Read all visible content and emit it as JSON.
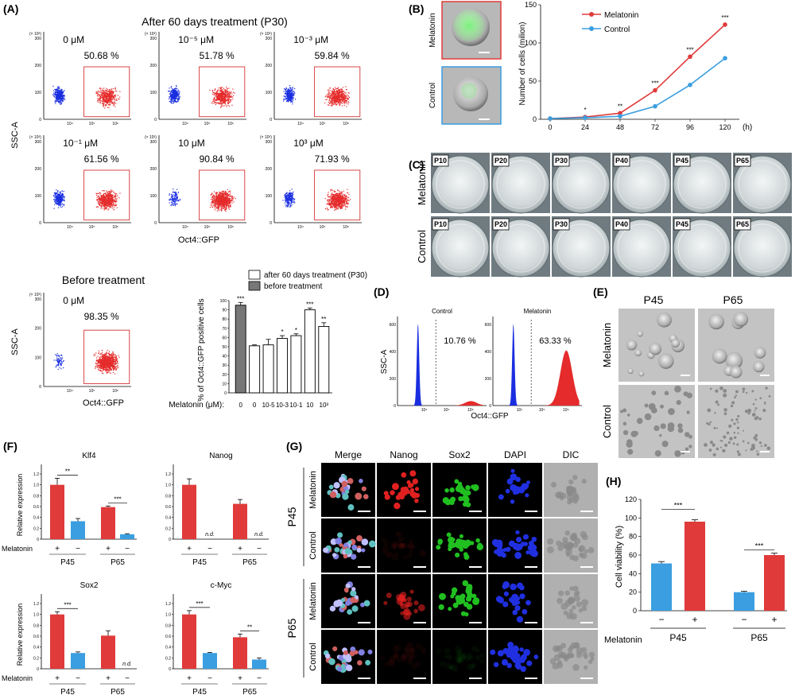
{
  "panels": {
    "A": "(A)",
    "B": "(B)",
    "C": "(C)",
    "D": "(D)",
    "E": "(E)",
    "F": "(F)",
    "G": "(G)",
    "H": "(H)"
  },
  "A": {
    "title": "After 60 days treatment (P30)",
    "scale_label": "(× 10³)",
    "yticks": [
      "0",
      "100",
      "200",
      "300"
    ],
    "xticks": [
      "0",
      "10⁴",
      "10⁵",
      "10⁶"
    ],
    "ylabel": "SSC-A",
    "xlabel": "Oct4::GFP",
    "plots": [
      {
        "dose": "0 μM",
        "pct": "50.68 %"
      },
      {
        "dose": "10⁻⁵ μM",
        "pct": "51.78 %"
      },
      {
        "dose": "10⁻³ μM",
        "pct": "59.84 %"
      },
      {
        "dose": "10⁻¹ μM",
        "pct": "61.56 %"
      },
      {
        "dose": "10 μM",
        "pct": "90.84 %"
      },
      {
        "dose": "10³ μM",
        "pct": "71.93 %"
      }
    ],
    "before": {
      "title": "Before treatment",
      "dose": "0 μM",
      "pct": "98.35 %"
    }
  },
  "A_bar": {
    "legend": [
      "after 60 days treatment (P30)",
      "before treatment"
    ],
    "ylabel": "% of Oct4::GFP positive cells",
    "xlabel": "Melatonin (μM):",
    "colors": {
      "before": "#777777",
      "after": "#ffffff"
    },
    "chart_data": {
      "type": "bar",
      "categories": [
        "0",
        "0",
        "10-5",
        "10-3",
        "10-1",
        "10",
        "10³"
      ],
      "values": [
        95,
        51,
        52,
        59,
        62,
        90,
        72
      ],
      "errors": [
        3,
        1,
        6,
        3,
        2,
        2,
        4
      ],
      "sig": [
        "***",
        "",
        "",
        "*",
        "*",
        "***",
        "**"
      ],
      "group": [
        "before",
        "after",
        "after",
        "after",
        "after",
        "after",
        "after"
      ],
      "ylim": [
        0,
        100
      ],
      "yticks": [
        "0",
        "10",
        "20",
        "30",
        "40",
        "50",
        "60",
        "70",
        "80",
        "90",
        "100"
      ]
    }
  },
  "B": {
    "img_labels": [
      "Melatonin",
      "Control"
    ],
    "ylabel": "Number of cells (milion)",
    "xunit": "(h)",
    "colors": {
      "Melatonin": "#e03a3a",
      "Control": "#3a9ee0"
    },
    "chart_data": {
      "type": "line",
      "x": [
        0,
        24,
        48,
        72,
        96,
        120
      ],
      "series": [
        {
          "name": "Melatonin",
          "values": [
            1,
            3,
            8,
            38,
            82,
            124
          ]
        },
        {
          "name": "Control",
          "values": [
            1,
            2,
            4,
            17,
            45,
            80
          ]
        }
      ],
      "sig": [
        "",
        "*",
        "**",
        "***",
        "***",
        "***"
      ],
      "ylim": [
        0,
        150
      ],
      "yticks": [
        "0",
        "50",
        "100",
        "150"
      ],
      "xticks": [
        "0",
        "24",
        "48",
        "72",
        "96",
        "120"
      ]
    }
  },
  "C": {
    "rows": [
      "Melatonin",
      "Control"
    ],
    "passages": [
      "P10",
      "P20",
      "P30",
      "P40",
      "P45",
      "P65"
    ]
  },
  "D": {
    "ylabel": "SSC-A",
    "xlabel": "Oct4::GFP",
    "plots": [
      {
        "name": "Control",
        "pct": "10.76 %"
      },
      {
        "name": "Melatonin",
        "pct": "63.33 %"
      }
    ],
    "yticks": [
      "0",
      "200",
      "400",
      "600"
    ],
    "xticks": [
      "0",
      "10⁴",
      "10⁵",
      "10⁶"
    ]
  },
  "E": {
    "cols": [
      "P45",
      "P65"
    ],
    "rows": [
      "Melatonin",
      "Control"
    ]
  },
  "F": {
    "ylabel": "Relative expression",
    "row_label": "Melatonin",
    "signs": [
      "+",
      "−"
    ],
    "passages": [
      "P45",
      "P65"
    ],
    "nd": "n.d.",
    "yticks": [
      "0",
      "0.2",
      "0.4",
      "0.6",
      "0.8",
      "1.0",
      "1.2"
    ],
    "colors": {
      "plus": "#e03a3a",
      "minus": "#3a9ee0"
    },
    "chart_data": [
      {
        "type": "bar",
        "title": "Klf4",
        "values": [
          1.0,
          0.33,
          0.59,
          0.09
        ],
        "errors": [
          0.12,
          0.05,
          0.02,
          0.01
        ],
        "sig": [
          "**",
          "***"
        ],
        "ylim": [
          0,
          1.2
        ]
      },
      {
        "type": "bar",
        "title": "Nanog",
        "values": [
          1.0,
          null,
          0.65,
          null
        ],
        "errors": [
          0.11,
          0,
          0.08,
          0
        ],
        "sig": [
          "",
          ""
        ],
        "ylim": [
          0,
          1.2
        ]
      },
      {
        "type": "bar",
        "title": "Sox2",
        "values": [
          1.0,
          0.29,
          0.61,
          null
        ],
        "errors": [
          0.05,
          0.02,
          0.09,
          0
        ],
        "sig": [
          "***",
          ""
        ],
        "ylim": [
          0,
          1.2
        ]
      },
      {
        "type": "bar",
        "title": "c-Myc",
        "values": [
          1.0,
          0.29,
          0.58,
          0.17
        ],
        "errors": [
          0.07,
          0.01,
          0.06,
          0.03
        ],
        "sig": [
          "***",
          "**"
        ],
        "ylim": [
          0,
          1.2
        ]
      }
    ]
  },
  "G": {
    "cols": [
      "Merge",
      "Nanog",
      "Sox2",
      "DAPI",
      "DIC"
    ],
    "rows": [
      "Melatonin",
      "Control",
      "Melatonin",
      "Control"
    ],
    "groups": [
      "P45",
      "P65"
    ]
  },
  "H": {
    "ylabel": "Cell viability (%)",
    "row_label": "Melatonin",
    "signs": [
      "−",
      "+"
    ],
    "passages": [
      "P45",
      "P65"
    ],
    "colors": {
      "plus": "#e03a3a",
      "minus": "#3a9ee0"
    },
    "chart_data": {
      "type": "bar",
      "categories": [
        "P45 −",
        "P45 +",
        "P65 −",
        "P65 +"
      ],
      "values": [
        51,
        96,
        20,
        60
      ],
      "errors": [
        2,
        2,
        1,
        2
      ],
      "sig": [
        "***",
        "***"
      ],
      "ylim": [
        0,
        120
      ],
      "yticks": [
        "0",
        "20",
        "40",
        "60",
        "80",
        "100",
        "120"
      ]
    }
  }
}
